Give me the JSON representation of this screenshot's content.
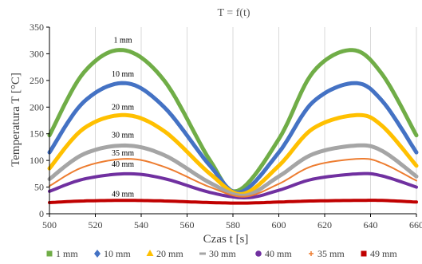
{
  "chart_data": {
    "type": "line",
    "title": "T = f(t)",
    "xlabel": "Czas t [s]",
    "ylabel": "Temperatura T [°C]",
    "xlim": [
      500,
      660
    ],
    "ylim": [
      0,
      350
    ],
    "x_ticks": [
      500,
      520,
      540,
      560,
      580,
      600,
      620,
      640,
      660
    ],
    "y_ticks": [
      0,
      50,
      100,
      150,
      200,
      250,
      300,
      350
    ],
    "grid": "vertical",
    "legend_position": "bottom",
    "series": [
      {
        "name": "1 mm",
        "label": "1 mm",
        "color": "#70ad47",
        "marker": "square",
        "x": [
          500,
          515,
          532,
          550,
          570,
          582,
          600,
          615,
          632,
          645,
          660
        ],
        "y": [
          147,
          265,
          307,
          250,
          100,
          43,
          140,
          266,
          307,
          262,
          147
        ]
      },
      {
        "name": "10 mm",
        "label": "10 mm",
        "color": "#4472c4",
        "marker": "diamond",
        "x": [
          500,
          515,
          533,
          550,
          570,
          583,
          600,
          615,
          633,
          645,
          660
        ],
        "y": [
          115,
          210,
          245,
          200,
          90,
          40,
          115,
          210,
          245,
          212,
          115
        ]
      },
      {
        "name": "20 mm",
        "label": "20 mm",
        "color": "#ffc000",
        "marker": "triangle",
        "x": [
          500,
          515,
          533,
          550,
          570,
          584,
          600,
          615,
          634,
          645,
          660
        ],
        "y": [
          85,
          160,
          185,
          155,
          75,
          37,
          90,
          160,
          185,
          165,
          90
        ]
      },
      {
        "name": "30 mm",
        "label": "30 mm",
        "color": "#a5a5a5",
        "marker": "dash",
        "x": [
          500,
          515,
          533,
          550,
          570,
          585,
          600,
          615,
          634,
          645,
          660
        ],
        "y": [
          65,
          112,
          128,
          110,
          58,
          34,
          70,
          112,
          128,
          118,
          70
        ]
      },
      {
        "name": "40 mm",
        "label": "40 mm",
        "color": "#7030a0",
        "marker": "circle",
        "x": [
          500,
          515,
          534,
          550,
          570,
          586,
          600,
          615,
          635,
          645,
          660
        ],
        "y": [
          42,
          65,
          75,
          66,
          40,
          30,
          44,
          65,
          75,
          71,
          50
        ]
      },
      {
        "name": "35 mm",
        "label": "35 mm",
        "color": "#ed7d31",
        "marker": "plus",
        "x": [
          500,
          515,
          534,
          550,
          570,
          585,
          600,
          615,
          635,
          645,
          660
        ],
        "y": [
          52,
          88,
          103,
          88,
          50,
          32,
          56,
          90,
          103,
          95,
          62
        ]
      },
      {
        "name": "49 mm",
        "label": "49 mm",
        "color": "#c00000",
        "marker": "square",
        "x": [
          500,
          515,
          533,
          550,
          570,
          585,
          600,
          615,
          634,
          645,
          660
        ],
        "y": [
          21,
          24,
          25,
          24,
          21,
          20,
          22,
          24,
          25,
          25,
          22
        ]
      }
    ],
    "annotations": [
      {
        "text": "1 mm",
        "x": 532,
        "y": 325
      },
      {
        "text": "10 mm",
        "x": 532,
        "y": 262
      },
      {
        "text": "20 mm",
        "x": 532,
        "y": 200
      },
      {
        "text": "30 mm",
        "x": 532,
        "y": 147
      },
      {
        "text": "35 mm",
        "x": 532,
        "y": 114
      },
      {
        "text": "40 mm",
        "x": 532,
        "y": 93
      },
      {
        "text": "49 mm",
        "x": 532,
        "y": 37
      }
    ]
  }
}
